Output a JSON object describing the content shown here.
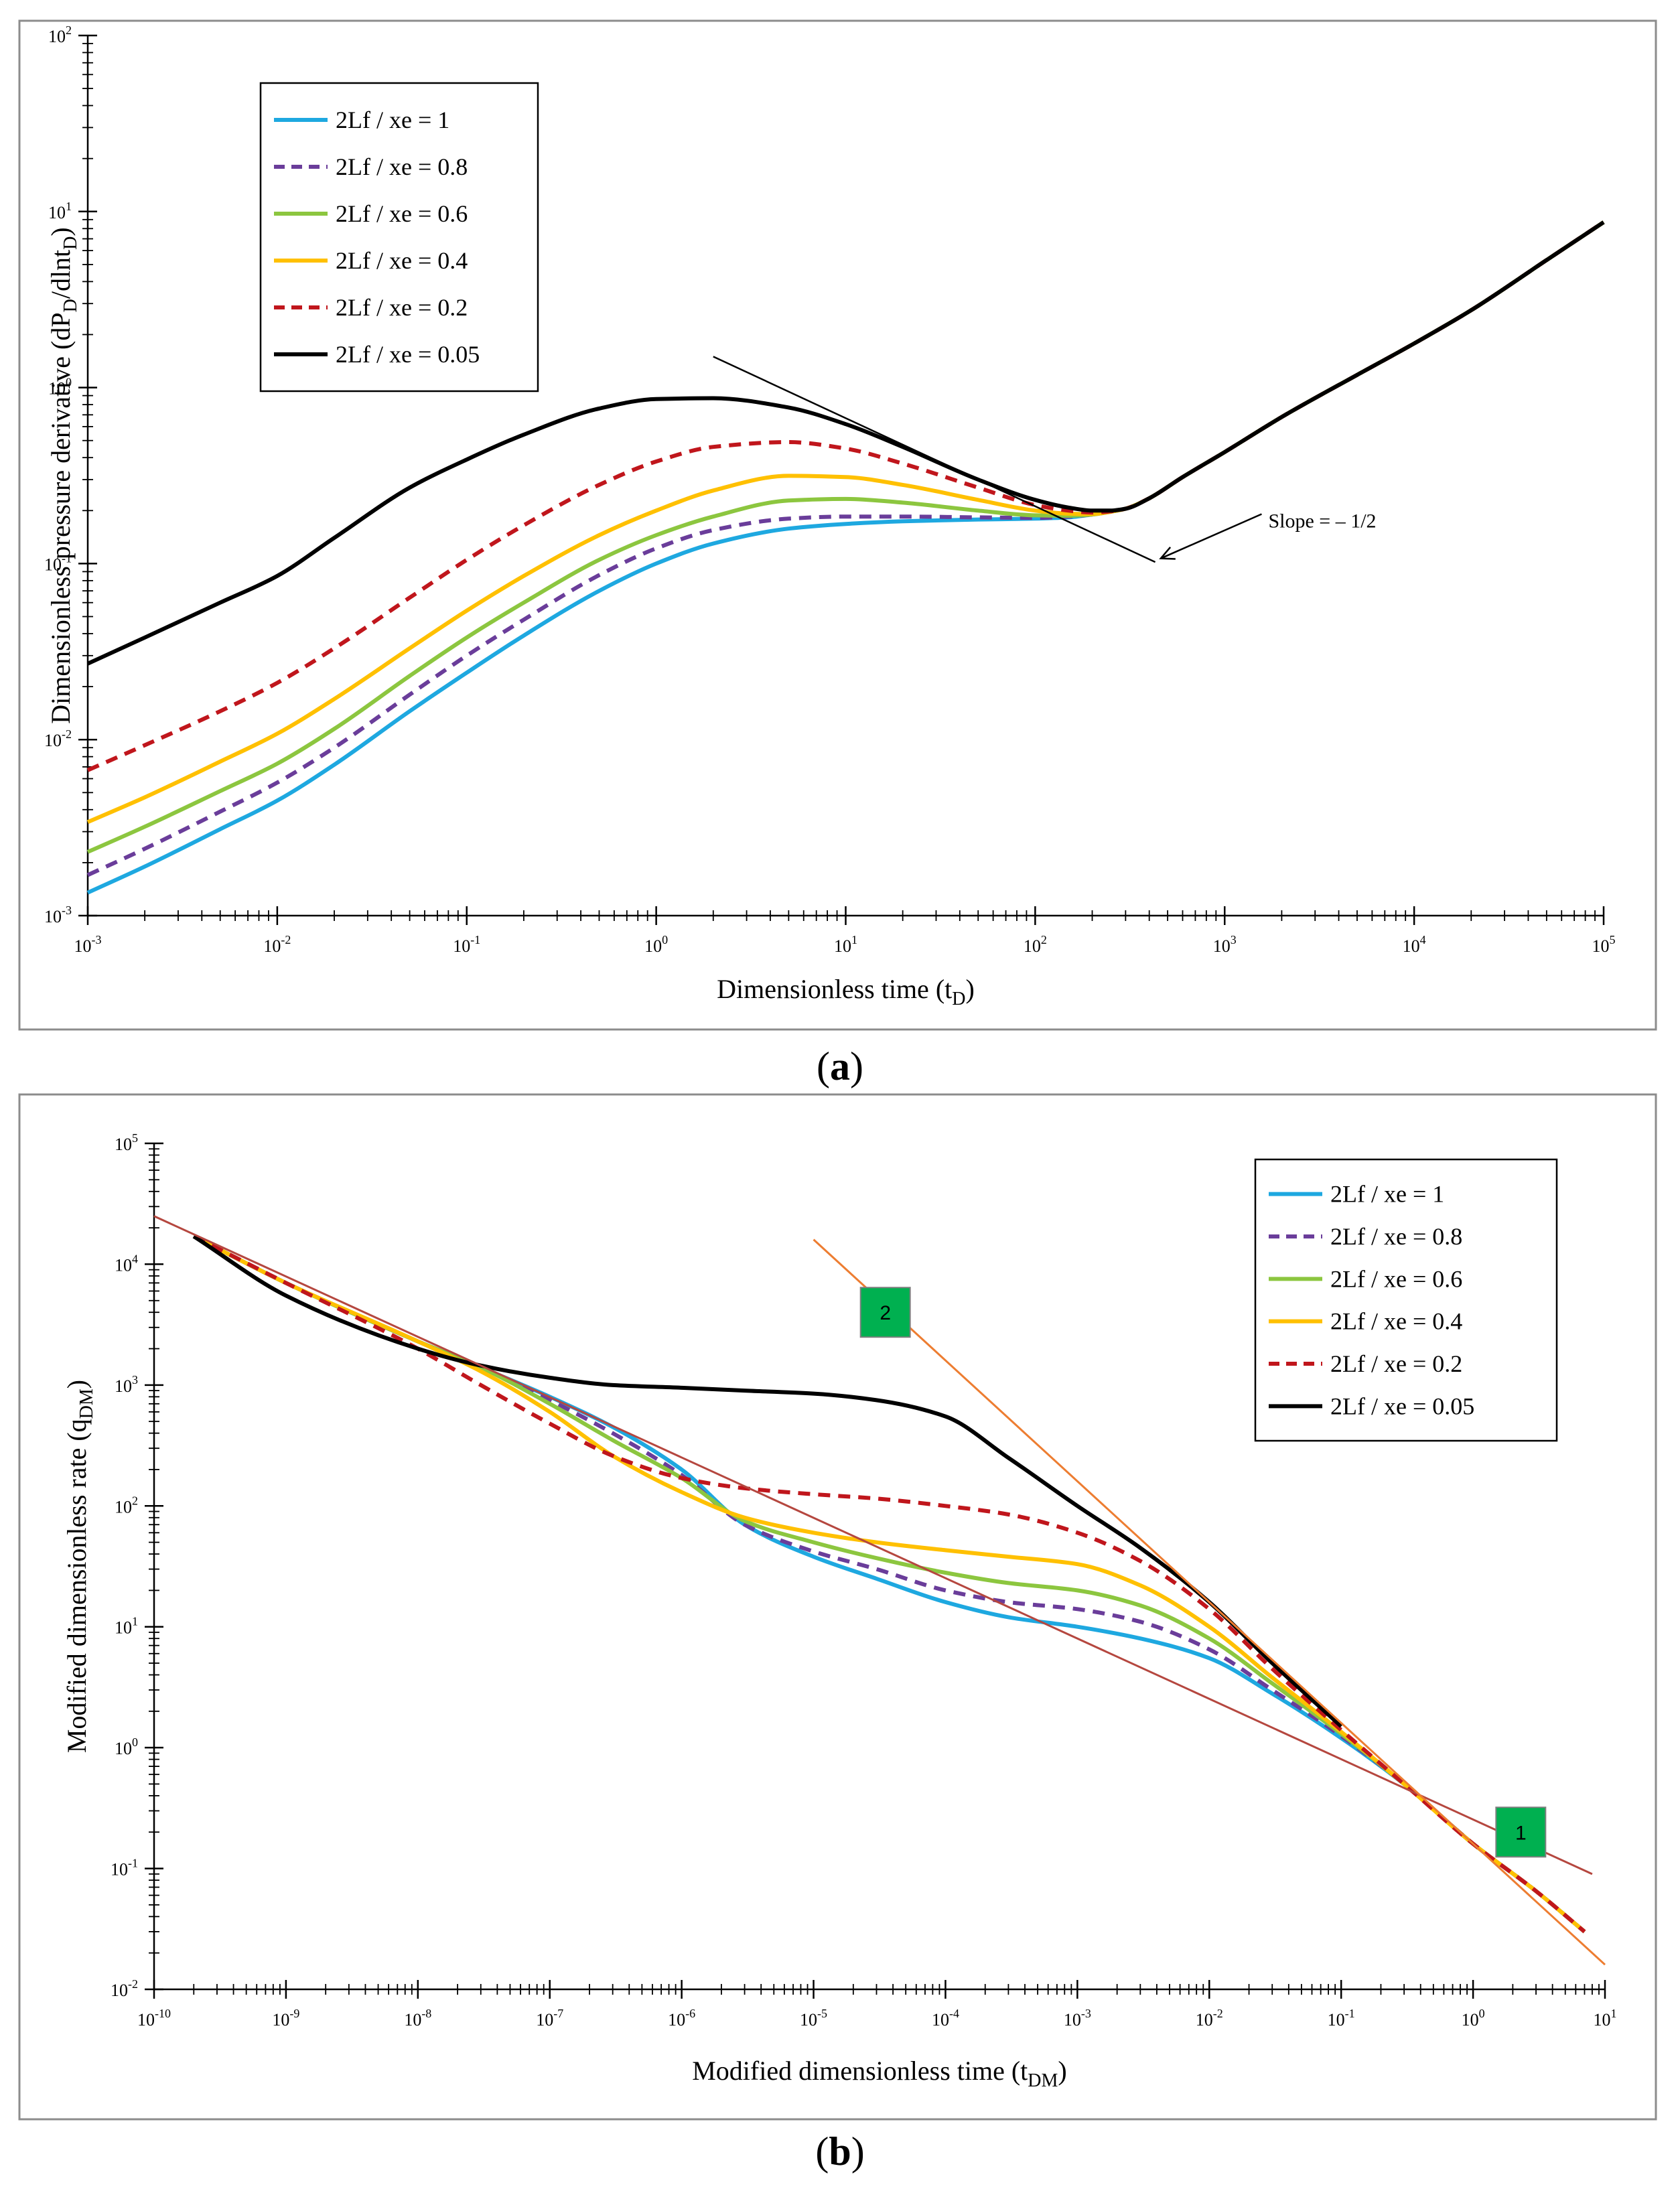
{
  "chart_data": [
    {
      "id": "a",
      "type": "line",
      "panel_label": "a",
      "xscale": "log",
      "yscale": "log",
      "xlim": [
        0.001,
        100000
      ],
      "ylim": [
        0.001,
        100
      ],
      "x_tick_exponents": [
        "-3",
        "-2",
        "-1",
        "0",
        "1",
        "2",
        "3",
        "4",
        "5"
      ],
      "y_tick_exponents": [
        "-3",
        "-2",
        "-1",
        "0",
        "1",
        "2"
      ],
      "tick_base": "10",
      "xlabel": {
        "main": "Dimensionless time (t",
        "sub": "D",
        "end": ")"
      },
      "ylabel": {
        "p1": "Dimensionless pressure derivative (dP",
        "s1": "D",
        "p2": "/dlnt",
        "s2": "D",
        "p3": ")"
      },
      "legend_position": "top-left",
      "series": [
        {
          "name": "2Lf / xe = 1",
          "color": "#1ea8e0",
          "dash": "solid",
          "x": [
            0.001,
            0.002,
            0.005,
            0.01,
            0.02,
            0.05,
            0.1,
            0.2,
            0.5,
            1,
            2,
            5,
            10,
            20,
            50,
            100,
            150,
            200,
            250,
            300,
            400,
            600,
            1000,
            2000,
            5000,
            10000,
            20000,
            50000,
            100000
          ],
          "y": [
            0.00135,
            0.0019,
            0.0031,
            0.0045,
            0.0072,
            0.0145,
            0.024,
            0.039,
            0.07,
            0.1,
            0.13,
            0.158,
            0.168,
            0.174,
            0.178,
            0.18,
            0.183,
            0.19,
            0.197,
            0.205,
            0.235,
            0.31,
            0.43,
            0.68,
            1.18,
            1.78,
            2.75,
            5.3,
            8.7
          ]
        },
        {
          "name": "2Lf / xe = 0.8",
          "color": "#6a3d9a",
          "dash": "dashed",
          "x": [
            0.001,
            0.002,
            0.005,
            0.01,
            0.02,
            0.05,
            0.1,
            0.2,
            0.5,
            1,
            2,
            5,
            10,
            20,
            50,
            100,
            150,
            200,
            250,
            300,
            400,
            600,
            1000,
            2000,
            5000,
            10000,
            20000,
            50000,
            100000
          ],
          "y": [
            0.0017,
            0.0024,
            0.0039,
            0.0057,
            0.009,
            0.018,
            0.03,
            0.048,
            0.086,
            0.122,
            0.155,
            0.18,
            0.185,
            0.185,
            0.183,
            0.182,
            0.185,
            0.19,
            0.197,
            0.205,
            0.235,
            0.31,
            0.43,
            0.68,
            1.18,
            1.78,
            2.75,
            5.3,
            8.7
          ]
        },
        {
          "name": "2Lf / xe = 0.6",
          "color": "#8cc63f",
          "dash": "solid",
          "x": [
            0.001,
            0.002,
            0.005,
            0.01,
            0.02,
            0.05,
            0.1,
            0.2,
            0.5,
            1,
            2,
            5,
            10,
            20,
            50,
            100,
            150,
            200,
            250,
            300,
            400,
            600,
            1000,
            2000,
            5000,
            10000,
            20000,
            50000,
            100000
          ],
          "y": [
            0.0023,
            0.0032,
            0.0051,
            0.0073,
            0.0115,
            0.023,
            0.038,
            0.06,
            0.105,
            0.145,
            0.185,
            0.228,
            0.233,
            0.222,
            0.2,
            0.188,
            0.187,
            0.19,
            0.197,
            0.205,
            0.235,
            0.31,
            0.43,
            0.68,
            1.18,
            1.78,
            2.75,
            5.3,
            8.7
          ]
        },
        {
          "name": "2Lf / xe = 0.4",
          "color": "#ffc000",
          "dash": "solid",
          "x": [
            0.001,
            0.002,
            0.005,
            0.01,
            0.02,
            0.05,
            0.1,
            0.2,
            0.5,
            1,
            2,
            5,
            10,
            20,
            50,
            100,
            150,
            200,
            250,
            300,
            400,
            600,
            1000,
            2000,
            5000,
            10000,
            20000,
            50000,
            100000
          ],
          "y": [
            0.0034,
            0.0047,
            0.0075,
            0.0108,
            0.017,
            0.033,
            0.054,
            0.085,
            0.145,
            0.2,
            0.26,
            0.315,
            0.31,
            0.28,
            0.23,
            0.2,
            0.192,
            0.191,
            0.197,
            0.205,
            0.235,
            0.31,
            0.43,
            0.68,
            1.18,
            1.78,
            2.75,
            5.3,
            8.7
          ]
        },
        {
          "name": "2Lf / xe = 0.2",
          "color": "#c0161c",
          "dash": "dashed",
          "x": [
            0.001,
            0.002,
            0.005,
            0.01,
            0.02,
            0.05,
            0.1,
            0.2,
            0.5,
            1,
            2,
            5,
            10,
            20,
            50,
            100,
            150,
            200,
            250,
            300,
            400,
            600,
            1000,
            2000,
            5000,
            10000,
            20000,
            50000,
            100000
          ],
          "y": [
            0.0067,
            0.0093,
            0.0145,
            0.021,
            0.033,
            0.064,
            0.105,
            0.165,
            0.28,
            0.38,
            0.46,
            0.49,
            0.45,
            0.37,
            0.27,
            0.215,
            0.2,
            0.195,
            0.198,
            0.205,
            0.235,
            0.31,
            0.43,
            0.68,
            1.18,
            1.78,
            2.75,
            5.3,
            8.7
          ]
        },
        {
          "name": "2Lf / xe = 0.05",
          "color": "#000000",
          "dash": "solid",
          "x": [
            0.001,
            0.002,
            0.005,
            0.01,
            0.02,
            0.05,
            0.1,
            0.2,
            0.5,
            1,
            2,
            5,
            10,
            20,
            50,
            100,
            150,
            200,
            250,
            300,
            400,
            600,
            1000,
            2000,
            5000,
            10000,
            20000,
            50000,
            100000
          ],
          "y": [
            0.027,
            0.038,
            0.06,
            0.085,
            0.14,
            0.27,
            0.39,
            0.54,
            0.76,
            0.86,
            0.87,
            0.77,
            0.62,
            0.46,
            0.3,
            0.23,
            0.208,
            0.2,
            0.2,
            0.205,
            0.235,
            0.31,
            0.43,
            0.68,
            1.18,
            1.78,
            2.75,
            5.3,
            8.7
          ]
        }
      ],
      "slope_line": {
        "x": [
          2,
          430
        ],
        "y": [
          1.5,
          0.102
        ],
        "color": "#000000"
      },
      "annotation": {
        "text": "Slope = – 1/2",
        "x": 1700,
        "y": 0.175,
        "arrow_to": [
          460,
          0.107
        ]
      }
    },
    {
      "id": "b",
      "type": "line",
      "panel_label": "b",
      "xscale": "log",
      "yscale": "log",
      "xlim": [
        1e-10,
        10
      ],
      "ylim": [
        0.01,
        100000
      ],
      "x_tick_exponents": [
        "-10",
        "-9",
        "-8",
        "-7",
        "-6",
        "-5",
        "-4",
        "-3",
        "-2",
        "-1",
        "0",
        "1"
      ],
      "y_tick_exponents": [
        "-2",
        "-1",
        "0",
        "1",
        "2",
        "3",
        "4",
        "5"
      ],
      "tick_base": "10",
      "xlabel": {
        "main": "Modified dimensionless time (t",
        "sub": "DM",
        "end": ")"
      },
      "ylabel": {
        "p1": "Modified dimensionless rate (q",
        "s1": "DM",
        "p2": ")",
        "s2": "",
        "p3": ""
      },
      "legend_position": "top-right",
      "series": [
        {
          "name": "2Lf / xe = 1",
          "color": "#1ea8e0",
          "dash": "solid",
          "x": [
            2e-10,
            1e-09,
            1e-08,
            3e-08,
            1e-07,
            3e-07,
            1e-06,
            3e-06,
            1e-05,
            3e-05,
            0.0001,
            0.0003,
            0.001,
            0.003,
            0.01,
            0.03,
            0.1,
            0.3,
            1,
            3,
            7
          ],
          "y": [
            17000,
            7000,
            2300,
            1400,
            800,
            450,
            200,
            70,
            38,
            25,
            16,
            12,
            10,
            8,
            5.5,
            2.8,
            1.2,
            0.5,
            0.16,
            0.065,
            0.03
          ]
        },
        {
          "name": "2Lf / xe = 0.8",
          "color": "#6a3d9a",
          "dash": "dashed",
          "x": [
            2e-10,
            1e-09,
            1e-08,
            3e-08,
            1e-07,
            3e-07,
            1e-06,
            3e-06,
            1e-05,
            3e-05,
            0.0001,
            0.0003,
            0.001,
            0.003,
            0.01,
            0.03,
            0.1,
            0.3,
            1,
            3,
            7
          ],
          "y": [
            17000,
            7000,
            2300,
            1400,
            750,
            400,
            180,
            70,
            42,
            30,
            20,
            16,
            14,
            11,
            6.5,
            3.0,
            1.25,
            0.5,
            0.16,
            0.065,
            0.03
          ]
        },
        {
          "name": "2Lf / xe = 0.6",
          "color": "#8cc63f",
          "dash": "solid",
          "x": [
            2e-10,
            1e-09,
            1e-08,
            3e-08,
            1e-07,
            3e-07,
            1e-06,
            3e-06,
            1e-05,
            3e-05,
            0.0001,
            0.0003,
            0.001,
            0.003,
            0.01,
            0.03,
            0.1,
            0.3,
            1,
            3,
            7
          ],
          "y": [
            17000,
            7000,
            2300,
            1400,
            700,
            350,
            170,
            75,
            50,
            37,
            28,
            23,
            20,
            15,
            8,
            3.4,
            1.3,
            0.5,
            0.16,
            0.065,
            0.03
          ]
        },
        {
          "name": "2Lf / xe = 0.4",
          "color": "#ffc000",
          "dash": "solid",
          "x": [
            2e-10,
            1e-09,
            1e-08,
            3e-08,
            1e-07,
            3e-07,
            1e-06,
            3e-06,
            1e-05,
            3e-05,
            0.0001,
            0.0003,
            0.001,
            0.003,
            0.01,
            0.03,
            0.1,
            0.3,
            1,
            3,
            7
          ],
          "y": [
            17000,
            7000,
            2300,
            1300,
            600,
            260,
            130,
            80,
            60,
            50,
            43,
            38,
            33,
            22,
            10,
            3.8,
            1.35,
            0.5,
            0.16,
            0.065,
            0.03
          ]
        },
        {
          "name": "2Lf / xe = 0.2",
          "color": "#c0161c",
          "dash": "dashed",
          "x": [
            2e-10,
            1e-09,
            1e-08,
            3e-08,
            1e-07,
            3e-07,
            1e-06,
            3e-06,
            1e-05,
            3e-05,
            0.0001,
            0.0003,
            0.001,
            0.003,
            0.01,
            0.03,
            0.1,
            0.3,
            1,
            3,
            7
          ],
          "y": [
            17000,
            7000,
            2000,
            1000,
            480,
            260,
            170,
            140,
            125,
            115,
            100,
            85,
            60,
            35,
            14,
            4.5,
            1.4,
            0.5,
            0.16,
            0.065,
            0.03
          ]
        },
        {
          "name": "2Lf / xe = 0.05",
          "color": "#000000",
          "dash": "solid",
          "x": [
            2e-10,
            1e-09,
            1e-08,
            3e-08,
            1e-07,
            3e-07,
            1e-06,
            3e-06,
            1e-05,
            3e-05,
            0.0001,
            0.0003,
            0.001,
            0.003,
            0.01,
            0.03,
            0.1
          ],
          "y": [
            17000,
            5500,
            2000,
            1450,
            1150,
            1000,
            950,
            900,
            850,
            750,
            550,
            250,
            100,
            45,
            16,
            5,
            1.5
          ]
        }
      ],
      "fit_lines": [
        {
          "x": [
            1e-10,
            8
          ],
          "y": [
            25000,
            0.09
          ],
          "color": "#b5473f"
        },
        {
          "x": [
            1e-05,
            10
          ],
          "y": [
            16000,
            0.016
          ],
          "color": "#ed7d31"
        }
      ],
      "markers": [
        {
          "label": "2",
          "x": 3.5e-05,
          "y": 4000,
          "color": "#00b050"
        },
        {
          "label": "1",
          "x": 2.3,
          "y": 0.2,
          "color": "#00b050"
        }
      ]
    }
  ]
}
